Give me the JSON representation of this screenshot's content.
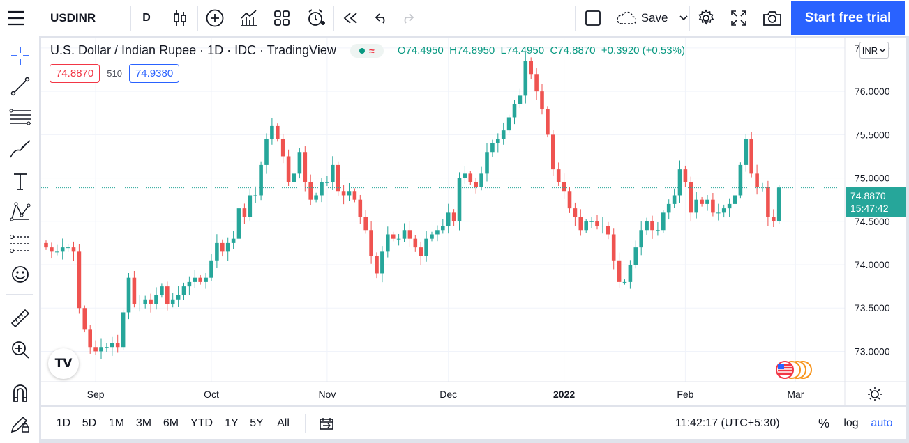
{
  "toolbar": {
    "symbol": "USDINR",
    "interval": "D",
    "save_label": "Save",
    "start_trial_label": "Start free trial"
  },
  "legend": {
    "title": "U.S. Dollar / Indian Rupee · 1D · IDC · TradingView",
    "pill_symbol": "≈",
    "open_label": "O",
    "open": "74.4950",
    "high_label": "H",
    "high": "74.8950",
    "low_label": "L",
    "low": "74.4950",
    "close_label": "C",
    "close": "74.8870",
    "change": "+0.3920 (+0.53%)"
  },
  "quote": {
    "bid": "74.8870",
    "spread": "510",
    "ask": "74.9380"
  },
  "currency": "INR",
  "last_price": {
    "price": "74.8870",
    "countdown": "15:47:42"
  },
  "logo_text": "TV",
  "bottom": {
    "ranges": [
      "1D",
      "5D",
      "1M",
      "3M",
      "6M",
      "YTD",
      "1Y",
      "5Y",
      "All"
    ],
    "clock": "11:42:17 (UTC+5:30)",
    "percent": "%",
    "log": "log",
    "auto": "auto"
  },
  "colors": {
    "up": "#26a69a",
    "down": "#ef5350",
    "accent": "#2962ff",
    "text": "#131722"
  },
  "chart_data": {
    "type": "candlestick",
    "symbol": "USDINR",
    "timeframe": "1D",
    "y_ticks": [
      "76.5000",
      "76.0000",
      "75.5000",
      "75.0000",
      "74.5000",
      "74.0000",
      "73.5000",
      "73.0000"
    ],
    "ylim": [
      72.65,
      76.62
    ],
    "x_ticks": [
      {
        "label": "Sep",
        "index": 9
      },
      {
        "label": "Oct",
        "index": 30
      },
      {
        "label": "Nov",
        "index": 51
      },
      {
        "label": "Dec",
        "index": 73
      },
      {
        "label": "2022",
        "index": 94,
        "bold": true
      },
      {
        "label": "Feb",
        "index": 116
      },
      {
        "label": "Mar",
        "index": 136
      }
    ],
    "last_value": 74.887,
    "closes": [
      74.2,
      74.15,
      74.15,
      74.2,
      74.2,
      74.15,
      73.5,
      73.25,
      73.05,
      73.0,
      73.05,
      73.05,
      73.1,
      73.05,
      73.45,
      73.85,
      73.55,
      73.55,
      73.6,
      73.55,
      73.65,
      73.75,
      73.55,
      73.6,
      73.65,
      73.75,
      73.8,
      73.85,
      73.8,
      73.85,
      74.05,
      74.25,
      74.15,
      74.25,
      74.3,
      74.65,
      74.55,
      74.8,
      74.8,
      75.15,
      75.45,
      75.6,
      75.45,
      75.25,
      74.95,
      75.05,
      75.3,
      74.95,
      74.75,
      74.8,
      74.95,
      74.95,
      75.15,
      74.85,
      74.8,
      74.85,
      74.75,
      74.55,
      74.4,
      74.1,
      73.9,
      74.15,
      74.35,
      74.3,
      74.3,
      74.4,
      74.3,
      74.2,
      74.1,
      74.3,
      74.35,
      74.4,
      74.45,
      74.6,
      74.5,
      75.0,
      75.05,
      74.95,
      74.9,
      75.05,
      75.3,
      75.4,
      75.45,
      75.55,
      75.7,
      75.85,
      75.95,
      76.35,
      76.2,
      76.0,
      75.8,
      75.5,
      75.1,
      74.95,
      74.85,
      74.65,
      74.55,
      74.4,
      74.5,
      74.5,
      74.45,
      74.45,
      74.35,
      74.05,
      73.8,
      73.8,
      74.0,
      74.2,
      74.4,
      74.5,
      74.4,
      74.4,
      74.6,
      74.7,
      74.8,
      75.1,
      74.95,
      74.6,
      74.75,
      74.7,
      74.75,
      74.6,
      74.6,
      74.65,
      74.7,
      74.8,
      75.15,
      75.45,
      75.05,
      74.9,
      74.9,
      74.55,
      74.5,
      74.89
    ]
  }
}
